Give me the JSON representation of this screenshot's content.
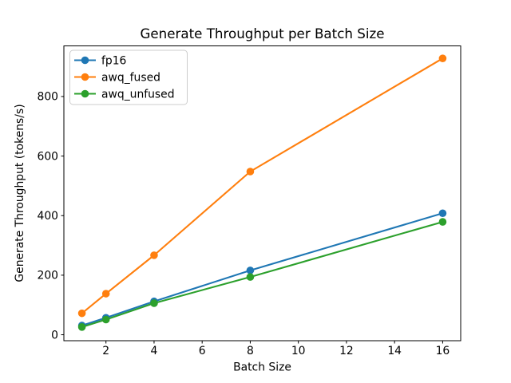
{
  "figure": {
    "background": "#ffffff",
    "spine_color": "#000000",
    "legend_border_color": "#cccccc"
  },
  "chart_data": {
    "type": "line",
    "title": "Generate Throughput per Batch Size",
    "xlabel": "Batch Size",
    "ylabel": "Generate Throughput (tokens/s)",
    "x": [
      1,
      2,
      4,
      8,
      16
    ],
    "series": [
      {
        "name": "fp16",
        "color": "#1f77b4",
        "values": [
          31,
          57,
          112,
          216,
          408
        ]
      },
      {
        "name": "awq_fused",
        "color": "#ff7f0e",
        "values": [
          72,
          138,
          267,
          548,
          928
        ]
      },
      {
        "name": "awq_unfused",
        "color": "#2ca02c",
        "values": [
          26,
          51,
          106,
          194,
          379
        ]
      }
    ],
    "marker": "circle",
    "xticks": [
      2,
      4,
      6,
      8,
      10,
      12,
      14,
      16
    ],
    "yticks": [
      0,
      200,
      400,
      600,
      800
    ],
    "xlim": [
      0.25,
      16.75
    ],
    "ylim": [
      -20,
      970
    ],
    "grid": false,
    "legend": {
      "position": "upper-left",
      "entries": [
        "fp16",
        "awq_fused",
        "awq_unfused"
      ]
    }
  }
}
